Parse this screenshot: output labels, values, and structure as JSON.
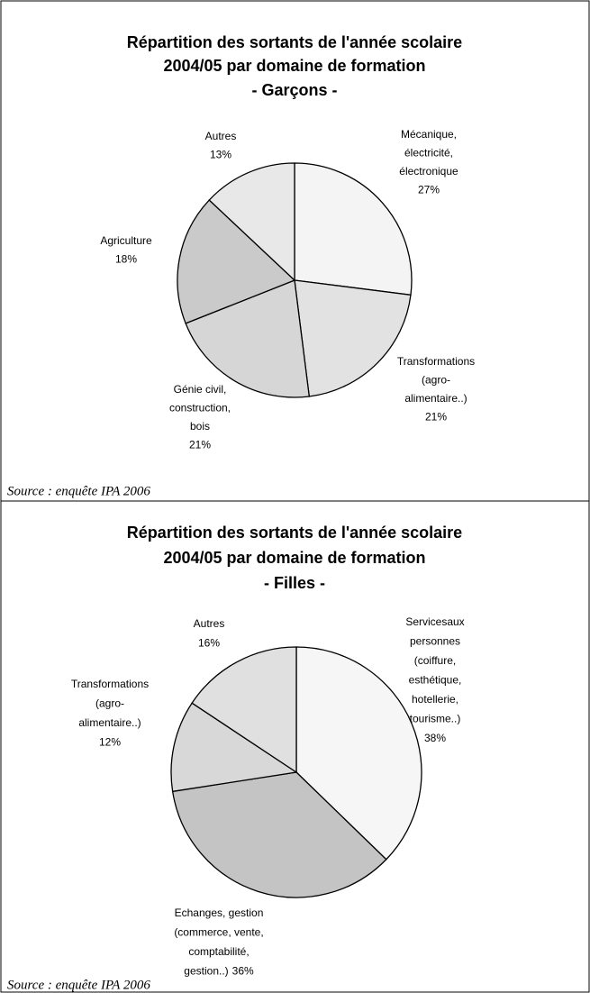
{
  "chart_data": [
    {
      "type": "pie",
      "title": "Répartition des sortants de l'année scolaire\n2004/05 par domaine de formation\n- Garçons -",
      "categories": [
        "Mécanique,\nélectricité,\nélectronique",
        "Transformations\n(agro-\nalimentaire..)",
        "Génie civil,\nconstruction,\nbois",
        "Agriculture",
        "Autres"
      ],
      "values": [
        27,
        21,
        21,
        18,
        13
      ],
      "value_labels": [
        "27%",
        "21%",
        "21%",
        "18%",
        "13%"
      ],
      "colors": [
        "#f4f4f4",
        "#e2e2e2",
        "#d6d6d6",
        "#cacaca",
        "#e8e8e8"
      ],
      "source": "Source : enquête IPA 2006"
    },
    {
      "type": "pie",
      "title": "Répartition des sortants de l'année scolaire\n2004/05 par domaine de formation\n- Filles -",
      "categories": [
        "Servicesaux\npersonnes\n(coiffure,\nesthétique,\nhotellerie,\ntourisme..)",
        "Echanges, gestion\n(commerce, vente,\ncomptabilité,\ngestion..)",
        "Transformations\n(agro-\nalimentaire..)",
        "Autres"
      ],
      "values": [
        38,
        36,
        12,
        16
      ],
      "value_labels": [
        "38%",
        "36%",
        "12%",
        "16%"
      ],
      "colors": [
        "#f6f6f6",
        "#c4c4c4",
        "#d8d8d8",
        "#e0e0e0"
      ],
      "source": "Source : enquête IPA 2006"
    }
  ]
}
